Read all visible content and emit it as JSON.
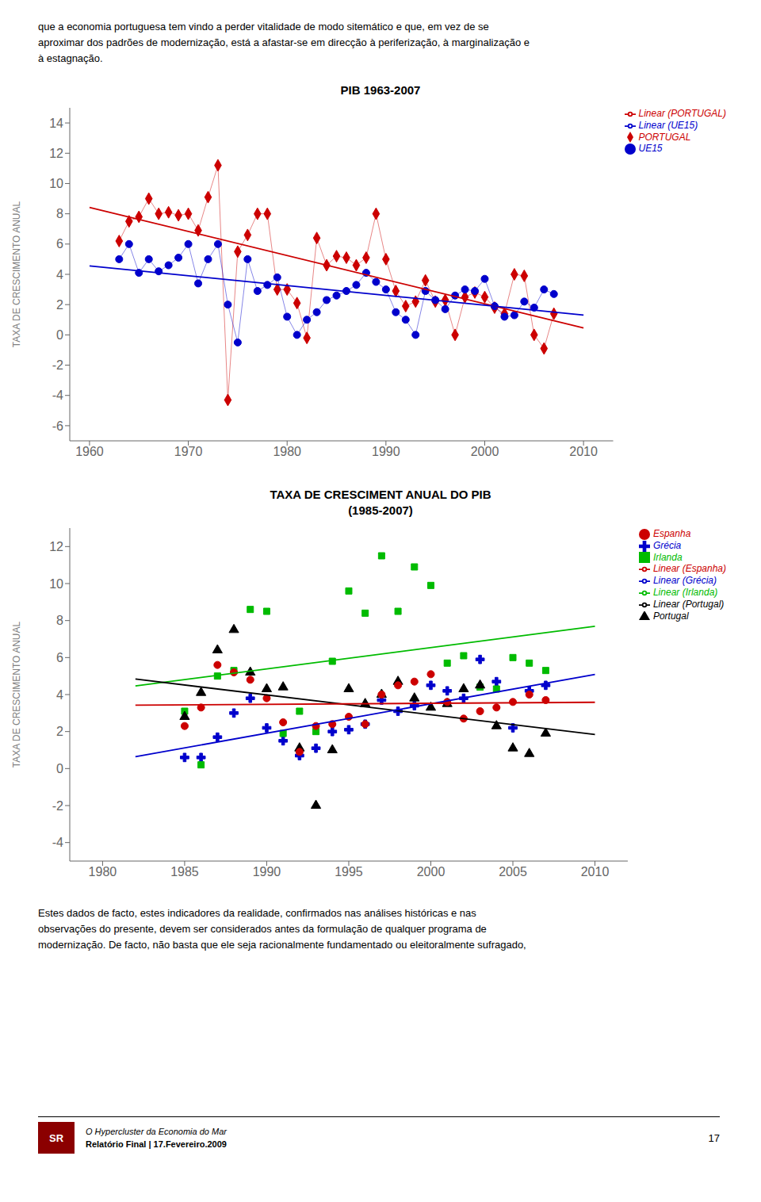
{
  "chart_data": [
    {
      "type": "scatter",
      "title": "PIB 1963-2007",
      "ylabel": "TAXA DE CRESCIMENTO ANUAL",
      "xlim": [
        1958,
        2013
      ],
      "ylim": [
        -7,
        15
      ],
      "xticks": [
        1960,
        1970,
        1980,
        1990,
        2000,
        2010
      ],
      "yticks": [
        -6,
        -4,
        -2,
        0,
        2,
        4,
        6,
        8,
        10,
        12,
        14
      ],
      "grid": false,
      "legend": "upper right",
      "series": [
        {
          "name": "PORTUGAL",
          "type": "scatter",
          "color": "#cc0000",
          "marker": "diamond",
          "line_style": "solid",
          "x": [
            1963,
            1964,
            1965,
            1966,
            1967,
            1968,
            1969,
            1970,
            1971,
            1972,
            1973,
            1974,
            1975,
            1976,
            1977,
            1978,
            1979,
            1980,
            1981,
            1982,
            1983,
            1984,
            1985,
            1986,
            1987,
            1988,
            1989,
            1990,
            1991,
            1992,
            1993,
            1994,
            1995,
            1996,
            1997,
            1998,
            1999,
            2000,
            2001,
            2002,
            2003,
            2004,
            2005,
            2006,
            2007
          ],
          "values": [
            6.2,
            7.5,
            7.8,
            9.0,
            8.0,
            8.1,
            7.9,
            8.0,
            6.9,
            9.1,
            11.2,
            -4.3,
            5.5,
            6.6,
            8.0,
            8.0,
            3.0,
            3.0,
            2.1,
            -0.2,
            6.4,
            4.6,
            5.2,
            5.1,
            4.6,
            5.1,
            8.0,
            5.0,
            2.9,
            1.9,
            2.2,
            3.6,
            2.2,
            2.3,
            0.0,
            2.5,
            2.8,
            2.5,
            1.8,
            1.4,
            4.0,
            3.9,
            0.0,
            -0.9,
            1.4
          ]
        },
        {
          "name": "UE15",
          "type": "scatter",
          "color": "#0000cc",
          "marker": "circle",
          "line_style": "solid",
          "x": [
            1963,
            1964,
            1965,
            1966,
            1967,
            1968,
            1969,
            1970,
            1971,
            1972,
            1973,
            1974,
            1975,
            1976,
            1977,
            1978,
            1979,
            1980,
            1981,
            1982,
            1983,
            1984,
            1985,
            1986,
            1987,
            1988,
            1989,
            1990,
            1991,
            1992,
            1993,
            1994,
            1995,
            1996,
            1997,
            1998,
            1999,
            2000,
            2001,
            2002,
            2003,
            2004,
            2005,
            2006,
            2007
          ],
          "values": [
            5.0,
            6.0,
            4.1,
            5.0,
            4.2,
            4.6,
            5.1,
            6.0,
            3.4,
            5.0,
            6.0,
            2.0,
            -0.5,
            5.0,
            2.9,
            3.3,
            3.8,
            1.2,
            0.0,
            1.0,
            1.5,
            2.3,
            2.6,
            2.9,
            3.3,
            4.1,
            3.5,
            3.0,
            1.5,
            1.0,
            0.0,
            2.9,
            2.3,
            1.7,
            2.6,
            3.0,
            2.9,
            3.7,
            1.9,
            1.2,
            1.3,
            2.2,
            1.8,
            3.0,
            2.7
          ]
        },
        {
          "name": "Linear (PORTUGAL)",
          "type": "line",
          "color": "#cc0000",
          "line_style": "solid",
          "x": [
            1960,
            2010
          ],
          "values": [
            8.4251,
            0.4594
          ]
        },
        {
          "name": "Linear (UE15)",
          "type": "line",
          "color": "#0000cc",
          "line_style": "solid",
          "x": [
            1960,
            2010
          ],
          "values": [
            4.5575,
            1.3092
          ]
        }
      ]
    },
    {
      "type": "scatter",
      "title": "TAXA DE CRESCIMENT ANUAL DO PIB",
      "subtitle": "(1985-2007)",
      "ylabel": "TAXA DE CRESCIMENTO ANUAL",
      "xlim": [
        1978,
        2012
      ],
      "ylim": [
        -5,
        13
      ],
      "xticks": [
        1980,
        1985,
        1990,
        1995,
        2000,
        2005,
        2010
      ],
      "yticks": [
        -4,
        -2,
        0,
        2,
        4,
        6,
        8,
        10,
        12
      ],
      "grid": false,
      "legend": "upper right",
      "series": [
        {
          "name": "Grécia",
          "type": "scatter",
          "color": "#0000cc",
          "marker": "plus",
          "line_style": "none",
          "x": [
            1985,
            1986,
            1987,
            1988,
            1989,
            1990,
            1991,
            1992,
            1993,
            1994,
            1995,
            1996,
            1997,
            1998,
            1999,
            2000,
            2001,
            2002,
            2003,
            2004,
            2005,
            2006,
            2007
          ],
          "values": [
            0.6,
            0.6,
            1.7,
            3.0,
            3.8,
            2.2,
            1.5,
            0.7,
            1.1,
            2.0,
            2.1,
            2.4,
            3.7,
            3.1,
            3.4,
            4.5,
            4.2,
            3.8,
            5.9,
            4.7,
            2.2,
            4.2,
            4.5
          ]
        },
        {
          "name": "Irlanda",
          "type": "scatter",
          "color": "#00bb00",
          "marker": "square",
          "line_style": "none",
          "x": [
            1985,
            1986,
            1987,
            1988,
            1989,
            1990,
            1991,
            1992,
            1993,
            1994,
            1995,
            1996,
            1997,
            1998,
            1999,
            2000,
            2001,
            2002,
            2003,
            2004,
            2005,
            2006,
            2007
          ],
          "values": [
            3.1,
            0.2,
            5.0,
            5.3,
            8.6,
            8.5,
            1.9,
            3.1,
            2.0,
            5.8,
            9.6,
            8.4,
            11.5,
            8.5,
            10.9,
            9.9,
            5.7,
            6.1,
            4.4,
            4.3,
            6.0,
            5.7,
            5.3
          ]
        },
        {
          "name": "Portugal",
          "type": "scatter",
          "color": "#000000",
          "marker": "triangle",
          "line_style": "none",
          "x": [
            1985,
            1986,
            1987,
            1988,
            1989,
            1990,
            1991,
            1992,
            1993,
            1994,
            1995,
            1996,
            1997,
            1998,
            1999,
            2000,
            2001,
            2002,
            2003,
            2004,
            2005,
            2006,
            2007
          ],
          "values": [
            2.8,
            4.1,
            6.4,
            7.5,
            5.2,
            4.3,
            4.4,
            1.1,
            -2.0,
            1.0,
            4.3,
            3.5,
            4.0,
            4.7,
            3.8,
            3.3,
            3.5,
            4.3,
            4.5,
            2.3,
            1.1,
            0.8,
            1.9
          ]
        },
        {
          "name": "Espanha",
          "type": "scatter",
          "color": "#cc0000",
          "marker": "circle",
          "line_style": "none",
          "x": [
            1985,
            1986,
            1987,
            1988,
            1989,
            1990,
            1991,
            1992,
            1993,
            1994,
            1995,
            1996,
            1997,
            1998,
            1999,
            2000,
            2001,
            2002,
            2003,
            2004,
            2005,
            2006,
            2007
          ],
          "values": [
            2.3,
            3.3,
            5.6,
            5.2,
            4.8,
            3.8,
            2.5,
            0.9,
            2.3,
            2.4,
            2.8,
            2.4,
            4.0,
            4.5,
            4.7,
            5.1,
            3.6,
            2.7,
            3.1,
            3.3,
            3.6,
            4.0,
            3.7
          ]
        },
        {
          "name": "Linear (Irlanda)",
          "type": "line",
          "color": "#00bb00",
          "line_style": "solid",
          "x": [
            1982,
            2010
          ],
          "values": [
            4.4652,
            7.6913
          ]
        },
        {
          "name": "Linear (Portugal)",
          "type": "line",
          "color": "#000000",
          "line_style": "solid",
          "x": [
            1982,
            2010
          ],
          "values": [
            4.8374,
            1.8409
          ]
        },
        {
          "name": "Linear (Grécia)",
          "type": "line",
          "color": "#0000cc",
          "line_style": "solid",
          "x": [
            1982,
            2010
          ],
          "values": [
            0.6421,
            5.0883
          ]
        },
        {
          "name": "Linear (Espanha)",
          "type": "line",
          "color": "#cc0000",
          "line_style": "solid",
          "x": [
            1982,
            2010
          ],
          "values": [
            3.4269,
            3.5818
          ]
        }
      ]
    }
  ],
  "annotations": {
    "intro": [
      "que a economia portuguesa tem vindo a perder vitalidade de modo sitemático e que, em vez de se",
      "aproximar dos padrões de modernização, está a afastar-se em direcção à periferização, à marginalização e",
      "à estagnação."
    ],
    "body": [
      "Estes dados de facto, estes indicadores da realidade, confirmados nas análises históricas e nas",
      "observações do presente, devem ser considerados antes da formulação de qualquer programa de",
      "modernização. De facto, não basta que ele seja racionalmente fundamentado ou eleitoralmente sufragado,"
    ],
    "footer_italic": "O Hypercluster da Economia do Mar",
    "footer_bold": "Relatório Final | 17.Fevereiro.2009",
    "page_number": "17",
    "logo": {
      "text": "SR",
      "color": "#8B0000"
    }
  }
}
